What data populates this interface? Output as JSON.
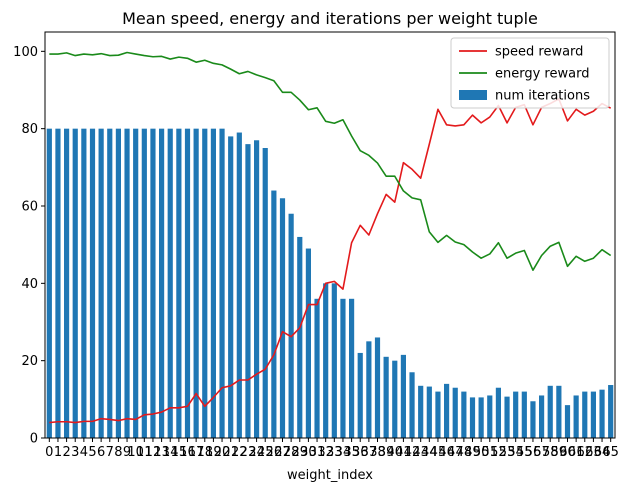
{
  "chart_data": {
    "type": "bar+line",
    "title": "Mean speed, energy and iterations per weight tuple",
    "xlabel": "weight_index",
    "ylabel": "",
    "ylim": [
      0,
      105
    ],
    "yticks": [
      0,
      20,
      40,
      60,
      80,
      100
    ],
    "grid": false,
    "legend_position": "top-right",
    "categories": [
      0,
      1,
      2,
      3,
      4,
      5,
      6,
      7,
      8,
      9,
      10,
      11,
      12,
      13,
      14,
      15,
      16,
      17,
      18,
      19,
      20,
      21,
      22,
      23,
      24,
      25,
      26,
      27,
      28,
      29,
      30,
      31,
      32,
      33,
      34,
      35,
      36,
      37,
      38,
      39,
      40,
      41,
      42,
      43,
      44,
      45,
      46,
      47,
      48,
      49,
      50,
      51,
      52,
      53,
      54,
      55,
      56,
      57,
      58,
      59,
      60,
      61,
      62,
      63,
      64,
      65
    ],
    "tick_labels": [
      "0",
      "1",
      "2",
      "3",
      "4",
      "5",
      "6",
      "7",
      "8",
      "9",
      "10",
      "11",
      "12",
      "13",
      "14",
      "15",
      "16",
      "17",
      "18",
      "19",
      "20",
      "21",
      "22",
      "23",
      "24",
      "25",
      "26",
      "27",
      "28",
      "29",
      "30",
      "31",
      "32",
      "33",
      "34",
      "35",
      "36",
      "37",
      "38",
      "39",
      "40",
      "41",
      "42",
      "43",
      "44",
      "45",
      "46",
      "47",
      "48",
      "49",
      "50",
      "51",
      "52",
      "53",
      "54",
      "55",
      "56",
      "57",
      "58",
      "59",
      "60",
      "61",
      "62",
      "63",
      "64",
      "65"
    ],
    "series": [
      {
        "name": "speed reward",
        "kind": "line",
        "color": "#e31a1c",
        "values": [
          4,
          4.2,
          4.2,
          4,
          4.3,
          4.3,
          5,
          4.8,
          4.5,
          5,
          4.8,
          6,
          6.2,
          6.7,
          7.8,
          7.8,
          8.2,
          11.5,
          8.2,
          10.5,
          13,
          13.5,
          15,
          15,
          16.5,
          17.8,
          21.5,
          27.5,
          26.2,
          28.5,
          34.5,
          34.5,
          40,
          40.5,
          38.5,
          50.5,
          55,
          52.5,
          58,
          63,
          61,
          71.2,
          69.5,
          67.2,
          76,
          85,
          81,
          80.7,
          81,
          83.5,
          81.5,
          83,
          86,
          81.5,
          85.5,
          86.2,
          81,
          85.5,
          86.5,
          87.7,
          82,
          85,
          83.5,
          84.5,
          86.5,
          85.3
        ]
      },
      {
        "name": "energy reward",
        "kind": "line",
        "color": "#1a8a1a",
        "values": [
          99.3,
          99.3,
          99.6,
          98.9,
          99.3,
          99.1,
          99.4,
          98.9,
          99,
          99.7,
          99.3,
          98.9,
          98.6,
          98.7,
          98,
          98.5,
          98.2,
          97.2,
          97.7,
          96.9,
          96.5,
          95.4,
          94.2,
          94.8,
          93.9,
          93.2,
          92.4,
          89.4,
          89.4,
          87.4,
          84.9,
          85.4,
          81.9,
          81.4,
          82.3,
          78.1,
          74.3,
          73.1,
          71.1,
          67.7,
          67.7,
          63.9,
          62.1,
          61.6,
          53.3,
          50.6,
          52.4,
          50.7,
          50,
          48.1,
          46.5,
          47.6,
          50.5,
          46.5,
          47.8,
          48.5,
          43.4,
          47.2,
          49.6,
          50.6,
          44.4,
          47,
          45.7,
          46.5,
          48.7,
          47.2
        ]
      },
      {
        "name": "num iterations",
        "kind": "bar",
        "color": "#1f77b4",
        "values": [
          80,
          80,
          80,
          80,
          80,
          80,
          80,
          80,
          80,
          80,
          80,
          80,
          80,
          80,
          80,
          80,
          80,
          80,
          80,
          80,
          80,
          78,
          79,
          76,
          77,
          75,
          64,
          62,
          58,
          52,
          49,
          36,
          40,
          40,
          36,
          36,
          22,
          25,
          26,
          21,
          20,
          21.5,
          17,
          13.5,
          13.3,
          12,
          14,
          13,
          12,
          10.5,
          10.5,
          11,
          13,
          10.7,
          12,
          12,
          9.5,
          11,
          13.5,
          13.5,
          8.5,
          11,
          12,
          12,
          12.5,
          13.7
        ]
      }
    ]
  }
}
